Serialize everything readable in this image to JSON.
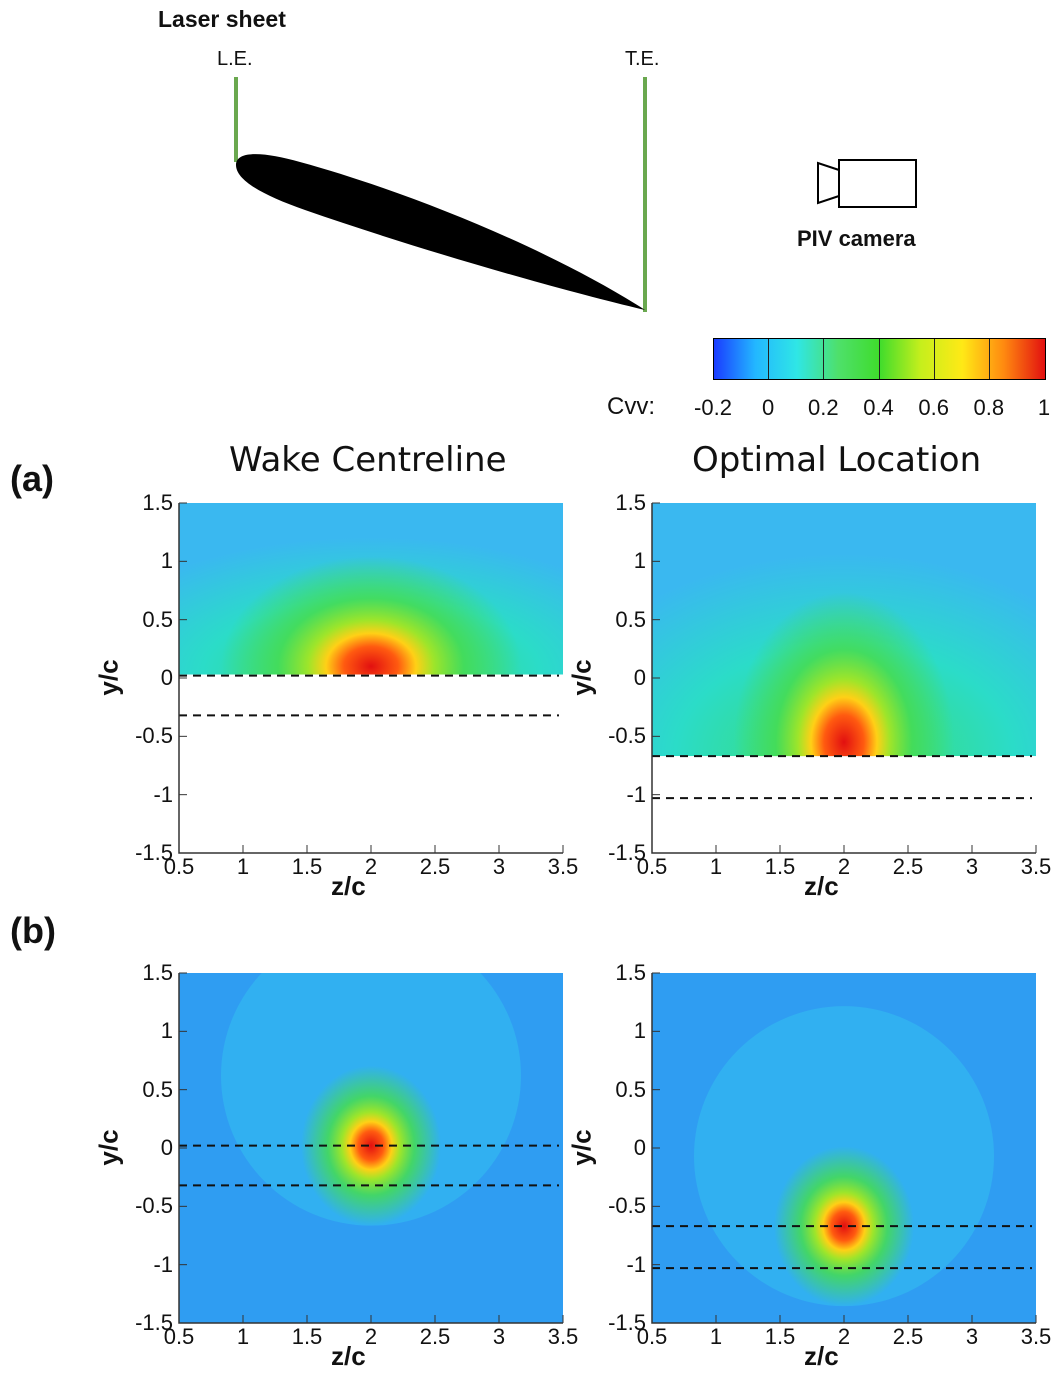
{
  "schematic": {
    "laser_label": "Laser sheet",
    "le_label": "L.E.",
    "te_label": "T.E.",
    "camera_label": "PIV camera",
    "sheet_color": "#6aa84f"
  },
  "colorbar": {
    "variable": "Cvv:",
    "ticks": [
      "-0.2",
      "0",
      "0.2",
      "0.4",
      "0.6",
      "0.8",
      "1"
    ],
    "range": [
      -0.2,
      1.0
    ],
    "colormap": [
      "#1a3cff",
      "#23b7ff",
      "#2fe6e6",
      "#4ee06b",
      "#3fdc2c",
      "#c6ef1c",
      "#ffe916",
      "#ff8a10",
      "#e21010"
    ]
  },
  "panels": {
    "a": {
      "tag": "(a)"
    },
    "b": {
      "tag": "(b)"
    }
  },
  "columns": {
    "left": {
      "title": "Wake Centreline"
    },
    "right": {
      "title": "Optimal Location"
    }
  },
  "axes": {
    "xlabel": "z/c",
    "ylabel": "y/c",
    "xticks": [
      "0.5",
      "1",
      "1.5",
      "2",
      "2.5",
      "3",
      "3.5"
    ],
    "yticks": [
      "1.5",
      "1",
      "0.5",
      "0",
      "-0.5",
      "-1",
      "-1.5"
    ],
    "xlim": [
      0.5,
      3.5
    ],
    "ylim": [
      -1.5,
      1.5
    ]
  },
  "chart_data": [
    {
      "type": "heatmap",
      "panel": "(a)",
      "title": "Wake Centreline",
      "xlabel": "z/c",
      "ylabel": "y/c",
      "xlim": [
        0.5,
        3.5
      ],
      "ylim": [
        -1.5,
        1.5
      ],
      "data_region_y": [
        0.03,
        1.5
      ],
      "peak": {
        "z": 2.0,
        "y": 0.1,
        "value": 1.0
      },
      "dashed_lines_y": [
        0.02,
        -0.32
      ]
    },
    {
      "type": "heatmap",
      "panel": "(a)",
      "title": "Optimal Location",
      "xlabel": "z/c",
      "ylabel": "y/c",
      "xlim": [
        0.5,
        3.5
      ],
      "ylim": [
        -1.5,
        1.5
      ],
      "data_region_y": [
        -0.67,
        1.5
      ],
      "peak": {
        "z": 2.0,
        "y": -0.55,
        "value": 1.0
      },
      "dashed_lines_y": [
        -0.67,
        -1.03
      ]
    },
    {
      "type": "heatmap",
      "panel": "(b)",
      "title": "Wake Centreline",
      "xlabel": "z/c",
      "ylabel": "y/c",
      "xlim": [
        0.5,
        3.5
      ],
      "ylim": [
        -1.5,
        1.5
      ],
      "data_region_y": [
        -1.5,
        1.5
      ],
      "peak": {
        "z": 2.0,
        "y": 0.02,
        "value": 1.0
      },
      "dashed_lines_y": [
        0.02,
        -0.32
      ]
    },
    {
      "type": "heatmap",
      "panel": "(b)",
      "title": "Optimal Location",
      "xlabel": "z/c",
      "ylabel": "y/c",
      "xlim": [
        0.5,
        3.5
      ],
      "ylim": [
        -1.5,
        1.5
      ],
      "data_region_y": [
        -1.5,
        1.5
      ],
      "peak": {
        "z": 2.0,
        "y": -0.67,
        "value": 1.0
      },
      "dashed_lines_y": [
        -0.67,
        -1.03
      ]
    }
  ]
}
